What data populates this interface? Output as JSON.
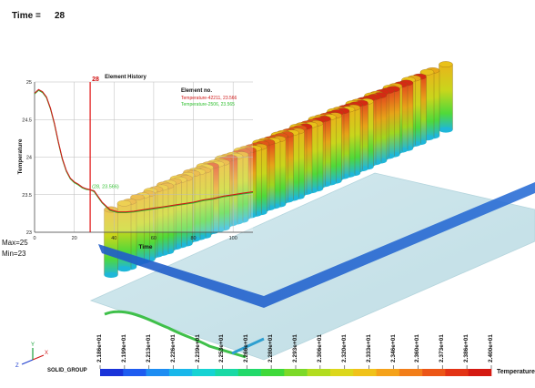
{
  "header": {
    "time_label": "Time =",
    "time_value": "28"
  },
  "stats": {
    "max": "Max=25",
    "min": "Min=23"
  },
  "group": {
    "label": "SOLID_GROUP"
  },
  "legend_bar": {
    "title": "Temperature",
    "values": [
      "2.186e+01",
      "2.199e+01",
      "2.213e+01",
      "2.226e+01",
      "2.239e+01",
      "2.253e+01",
      "2.266e+01",
      "2.280e+01",
      "2.293e+01",
      "2.306e+01",
      "2.320e+01",
      "2.333e+01",
      "2.346e+01",
      "2.360e+01",
      "2.373e+01",
      "2.386e+01",
      "2.400e+01"
    ],
    "colors": [
      "#1a33d9",
      "#1f5cf0",
      "#1e8df2",
      "#19b7ea",
      "#16d3d3",
      "#1ad9a5",
      "#22d96a",
      "#3fd93a",
      "#7cd928",
      "#b2dc1f",
      "#dcd71b",
      "#f0c21a",
      "#f5a21a",
      "#f27e19",
      "#ec5617",
      "#e33315",
      "#d41a12"
    ]
  },
  "axes_triad": {
    "x": "X",
    "y": "Y",
    "z": "Z"
  },
  "chart_data": {
    "type": "line",
    "title": "Element History",
    "xlabel": "Time",
    "ylabel": "Temperature",
    "xlim": [
      0,
      110
    ],
    "ylim": [
      23,
      25
    ],
    "x_ticks": [
      0,
      20,
      40,
      60,
      80,
      100
    ],
    "y_ticks": [
      23,
      23.5,
      24,
      24.5,
      25
    ],
    "grid": true,
    "legend_title": "Element no.",
    "legend_placement": "top-right",
    "cursor": {
      "x": 28,
      "label": "28"
    },
    "point_label": "(28, 23.566)",
    "series": [
      {
        "name": "Temperature-42211, 23.566",
        "color": "#d01818",
        "x": [
          0,
          2,
          4,
          6,
          8,
          10,
          12,
          14,
          16,
          18,
          20,
          22,
          24,
          26,
          28,
          30,
          34,
          38,
          42,
          46,
          50,
          55,
          60,
          65,
          70,
          75,
          80,
          85,
          90,
          95,
          100,
          105,
          110
        ],
        "y": [
          24.85,
          24.9,
          24.87,
          24.8,
          24.65,
          24.45,
          24.2,
          23.98,
          23.82,
          23.72,
          23.67,
          23.64,
          23.6,
          23.58,
          23.566,
          23.55,
          23.4,
          23.3,
          23.27,
          23.27,
          23.28,
          23.3,
          23.32,
          23.34,
          23.36,
          23.38,
          23.4,
          23.43,
          23.45,
          23.48,
          23.5,
          23.52,
          23.54
        ]
      },
      {
        "name": "Temperature-2506, 23.565",
        "color": "#2fbf2f",
        "x": [
          0,
          2,
          4,
          6,
          8,
          10,
          12,
          14,
          16,
          18,
          20,
          22,
          24,
          26,
          28,
          30,
          34,
          38,
          42,
          46,
          50,
          55,
          60,
          65,
          70,
          75,
          80,
          85,
          90,
          95,
          100,
          105,
          110
        ],
        "y": [
          24.84,
          24.89,
          24.86,
          24.79,
          24.64,
          24.44,
          24.19,
          23.97,
          23.81,
          23.71,
          23.66,
          23.63,
          23.59,
          23.57,
          23.565,
          23.54,
          23.39,
          23.29,
          23.26,
          23.26,
          23.27,
          23.29,
          23.31,
          23.33,
          23.35,
          23.37,
          23.39,
          23.42,
          23.44,
          23.47,
          23.49,
          23.51,
          23.53
        ]
      }
    ]
  }
}
